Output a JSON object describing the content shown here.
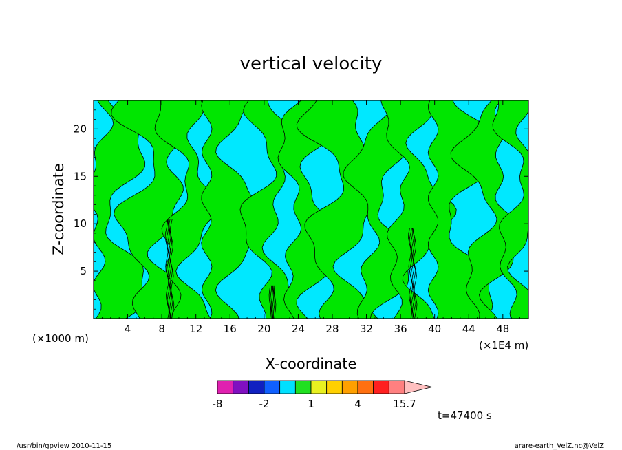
{
  "chart_data": {
    "type": "heatmap",
    "title": "vertical velocity",
    "xlabel": "X-coordinate",
    "ylabel": "Z-coordinate",
    "x_unit_left": "(×1000 m)",
    "x_unit_right": "(×1E4 m)",
    "xlim": [
      0,
      51
    ],
    "ylim": [
      0,
      23
    ],
    "x_ticks": [
      4,
      8,
      12,
      16,
      20,
      24,
      28,
      32,
      36,
      40,
      44,
      48
    ],
    "x_tick_labels": [
      "4",
      "8",
      "12",
      "16",
      "20",
      "24",
      "28",
      "32",
      "36",
      "40",
      "44",
      "48"
    ],
    "y_ticks": [
      5,
      10,
      15,
      20
    ],
    "y_tick_labels": [
      "5",
      "10",
      "15",
      "20"
    ],
    "colorbar": {
      "levels": [
        -8,
        -6,
        -4,
        -2,
        -1,
        0,
        1,
        2,
        3,
        4,
        8,
        12,
        15.7
      ],
      "labels": [
        "-8",
        "-2",
        "1",
        "4",
        "15.7"
      ],
      "label_values": [
        -8,
        -2,
        1,
        4,
        15.7
      ],
      "colors": [
        "#e020b0",
        "#8010c0",
        "#1020c0",
        "#1060ff",
        "#00e0ff",
        "#20e020",
        "#e8f020",
        "#ffd000",
        "#ffa000",
        "#ff7010",
        "#ff2020",
        "#ff8080",
        "#ffc0c0"
      ]
    },
    "dominant_colors": {
      "negative": "#00e8ff",
      "positive": "#00e600"
    },
    "time_label": "t=47400 s"
  },
  "footer": {
    "left": "/usr/bin/gpview   2010-11-15",
    "right": "arare-earth_VelZ.nc@VelZ"
  }
}
